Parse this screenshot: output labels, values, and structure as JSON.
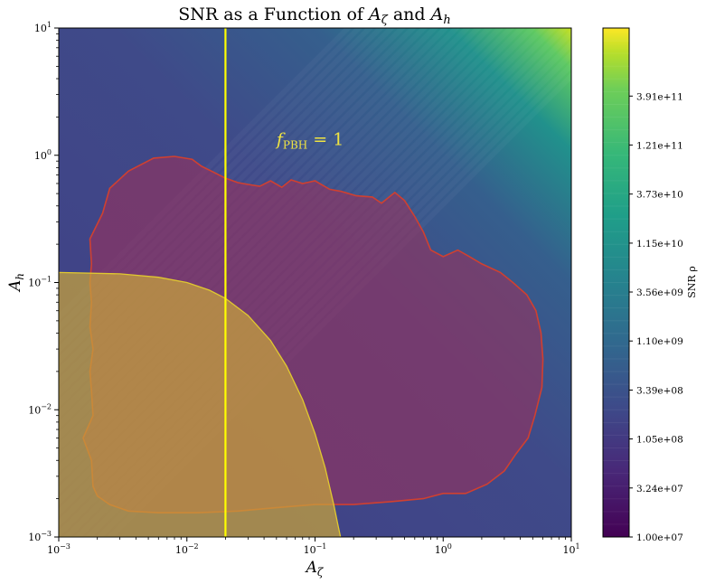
{
  "chart_data": {
    "type": "heatmap",
    "title": "SNR as a Function of A_ζ and A_h",
    "xlabel": "A_ζ",
    "ylabel": "A_h",
    "xscale": "log",
    "yscale": "log",
    "xlim": [
      0.001,
      10
    ],
    "ylim": [
      0.001,
      10
    ],
    "x_ticks": [
      {
        "value": 0.001,
        "base": "10",
        "exp": "−3"
      },
      {
        "value": 0.01,
        "base": "10",
        "exp": "−2"
      },
      {
        "value": 0.1,
        "base": "10",
        "exp": "−1"
      },
      {
        "value": 1,
        "base": "10",
        "exp": "0"
      },
      {
        "value": 10,
        "base": "10",
        "exp": "1"
      }
    ],
    "y_ticks": [
      {
        "value": 0.001,
        "base": "10",
        "exp": "−3"
      },
      {
        "value": 0.01,
        "base": "10",
        "exp": "−2"
      },
      {
        "value": 0.1,
        "base": "10",
        "exp": "−1"
      },
      {
        "value": 1,
        "base": "10",
        "exp": "0"
      },
      {
        "value": 10,
        "base": "10",
        "exp": "1"
      }
    ],
    "colorbar": {
      "label": "SNR ρ",
      "colormap": "viridis",
      "scale": "log",
      "ticks": [
        "1.00e+07",
        "3.24e+07",
        "1.05e+08",
        "3.39e+08",
        "1.10e+09",
        "3.56e+09",
        "1.15e+10",
        "3.73e+10",
        "1.21e+11",
        "3.91e+11"
      ]
    },
    "annotations": [
      {
        "text": "f_PBH = 1",
        "main": "f",
        "sub": "PBH",
        "rest": " = 1",
        "x": 0.05,
        "y": 1.2,
        "color": "#f0e442"
      }
    ],
    "vertical_lines": [
      {
        "x": 0.02,
        "color": "#ffff00"
      }
    ],
    "regions": [
      {
        "role": "red-outlined contour",
        "fill": "#a0305a",
        "stroke": "#d04030",
        "boundary": [
          [
            0.00185,
            0.0025
          ],
          [
            0.0018,
            0.004
          ],
          [
            0.00155,
            0.006
          ],
          [
            0.00185,
            0.009
          ],
          [
            0.0018,
            0.014
          ],
          [
            0.00175,
            0.02
          ],
          [
            0.00185,
            0.03
          ],
          [
            0.00175,
            0.045
          ],
          [
            0.0018,
            0.07
          ],
          [
            0.00175,
            0.1
          ],
          [
            0.0018,
            0.14
          ],
          [
            0.00175,
            0.22
          ],
          [
            0.0022,
            0.35
          ],
          [
            0.0025,
            0.55
          ],
          [
            0.0035,
            0.75
          ],
          [
            0.0055,
            0.95
          ],
          [
            0.008,
            0.98
          ],
          [
            0.011,
            0.93
          ],
          [
            0.013,
            0.82
          ],
          [
            0.016,
            0.74
          ],
          [
            0.02,
            0.66
          ],
          [
            0.025,
            0.61
          ],
          [
            0.03,
            0.59
          ],
          [
            0.037,
            0.57
          ],
          [
            0.045,
            0.63
          ],
          [
            0.055,
            0.56
          ],
          [
            0.065,
            0.64
          ],
          [
            0.08,
            0.6
          ],
          [
            0.1,
            0.63
          ],
          [
            0.13,
            0.54
          ],
          [
            0.16,
            0.52
          ],
          [
            0.21,
            0.48
          ],
          [
            0.28,
            0.47
          ],
          [
            0.33,
            0.42
          ],
          [
            0.42,
            0.51
          ],
          [
            0.5,
            0.44
          ],
          [
            0.6,
            0.33
          ],
          [
            0.7,
            0.25
          ],
          [
            0.8,
            0.18
          ],
          [
            1.0,
            0.16
          ],
          [
            1.3,
            0.18
          ],
          [
            1.6,
            0.16
          ],
          [
            2.0,
            0.14
          ],
          [
            2.8,
            0.12
          ],
          [
            3.5,
            0.1
          ],
          [
            4.5,
            0.08
          ],
          [
            5.3,
            0.06
          ],
          [
            5.8,
            0.04
          ],
          [
            6.0,
            0.025
          ],
          [
            5.9,
            0.015
          ],
          [
            5.2,
            0.009
          ],
          [
            4.6,
            0.006
          ],
          [
            3.7,
            0.0045
          ],
          [
            3.0,
            0.0033
          ],
          [
            2.2,
            0.0026
          ],
          [
            1.5,
            0.0022
          ],
          [
            1.0,
            0.0022
          ],
          [
            0.7,
            0.002
          ],
          [
            0.4,
            0.0019
          ],
          [
            0.2,
            0.0018
          ],
          [
            0.1,
            0.0018
          ],
          [
            0.05,
            0.0017
          ],
          [
            0.025,
            0.0016
          ],
          [
            0.012,
            0.00155
          ],
          [
            0.006,
            0.00155
          ],
          [
            0.0035,
            0.0016
          ],
          [
            0.0025,
            0.0018
          ],
          [
            0.002,
            0.0021
          ]
        ]
      },
      {
        "role": "yellow-outlined region",
        "fill": "#c8a43c",
        "stroke": "#e0c830",
        "boundary": [
          [
            0.001,
            0.12
          ],
          [
            0.003,
            0.117
          ],
          [
            0.006,
            0.11
          ],
          [
            0.01,
            0.1
          ],
          [
            0.015,
            0.087
          ],
          [
            0.02,
            0.075
          ],
          [
            0.03,
            0.055
          ],
          [
            0.045,
            0.035
          ],
          [
            0.06,
            0.022
          ],
          [
            0.08,
            0.012
          ],
          [
            0.1,
            0.0065
          ],
          [
            0.12,
            0.0035
          ],
          [
            0.14,
            0.0018
          ],
          [
            0.152,
            0.0012
          ],
          [
            0.158,
            0.001
          ]
        ]
      }
    ],
    "grid": false,
    "legend": "none"
  }
}
